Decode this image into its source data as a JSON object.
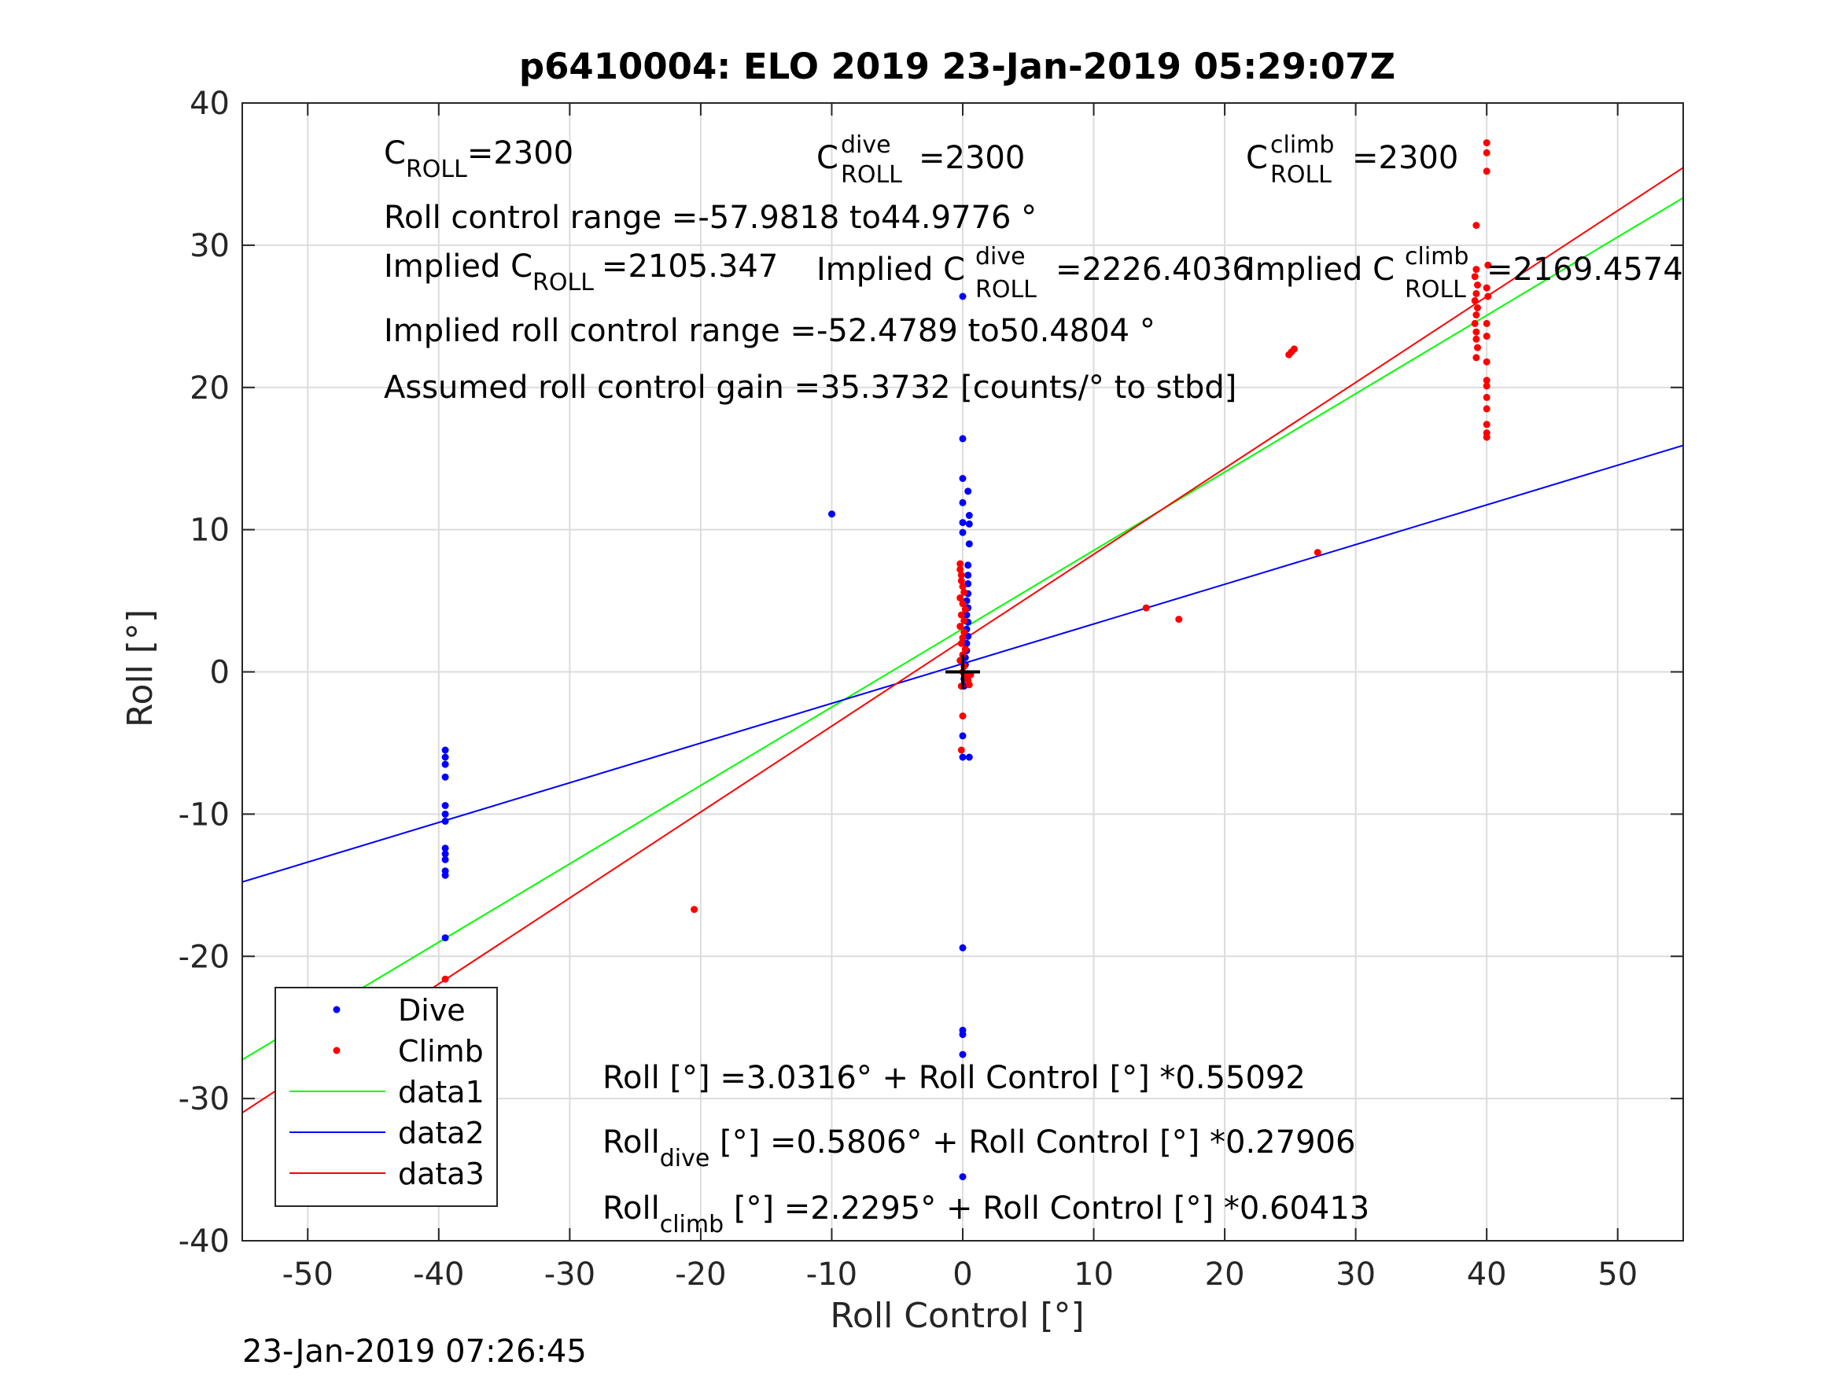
{
  "chart_data": {
    "type": "scatter",
    "title": "p6410004: ELO 2019 23-Jan-2019 05:29:07Z",
    "xlabel": "Roll Control [°]",
    "ylabel": "Roll [°]",
    "xlim": [
      -55,
      55
    ],
    "ylim": [
      -40,
      40
    ],
    "xticks": [
      "-50",
      "-40",
      "-30",
      "-20",
      "-10",
      "0",
      "10",
      "20",
      "30",
      "40",
      "50"
    ],
    "yticks": [
      "-40",
      "-30",
      "-20",
      "-10",
      "0",
      "10",
      "20",
      "30",
      "40"
    ],
    "grid": true,
    "legend_position": "bottom-left",
    "series": [
      {
        "name": "Dive",
        "style": "points",
        "color": "#0000ff",
        "points": [
          [
            -39.5,
            -5.5
          ],
          [
            -39.5,
            -6.0
          ],
          [
            -39.5,
            -6.5
          ],
          [
            -39.5,
            -7.4
          ],
          [
            -39.5,
            -9.4
          ],
          [
            -39.5,
            -10.0
          ],
          [
            -39.5,
            -10.5
          ],
          [
            -39.5,
            -12.4
          ],
          [
            -39.5,
            -12.8
          ],
          [
            -39.5,
            -13.2
          ],
          [
            -39.5,
            -14.0
          ],
          [
            -39.5,
            -14.3
          ],
          [
            -39.5,
            -18.7
          ],
          [
            -10.0,
            11.1
          ],
          [
            0.0,
            26.4
          ],
          [
            0.0,
            16.4
          ],
          [
            0.0,
            13.6
          ],
          [
            0.4,
            12.7
          ],
          [
            0.0,
            11.9
          ],
          [
            0.5,
            11.0
          ],
          [
            0.0,
            10.5
          ],
          [
            0.5,
            10.4
          ],
          [
            0.0,
            9.8
          ],
          [
            0.5,
            9.0
          ],
          [
            0.4,
            7.5
          ],
          [
            0.4,
            6.8
          ],
          [
            0.4,
            6.2
          ],
          [
            0.4,
            5.5
          ],
          [
            0.3,
            5.0
          ],
          [
            0.4,
            4.5
          ],
          [
            0.3,
            4.0
          ],
          [
            0.4,
            3.5
          ],
          [
            0.3,
            3.0
          ],
          [
            0.4,
            2.5
          ],
          [
            0.3,
            2.0
          ],
          [
            0.3,
            1.5
          ],
          [
            0.2,
            1.0
          ],
          [
            0.2,
            0.5
          ],
          [
            0.1,
            -0.5
          ],
          [
            0.1,
            -1.0
          ],
          [
            0.0,
            -4.5
          ],
          [
            0.0,
            -6.0
          ],
          [
            0.5,
            -6.0
          ],
          [
            0.0,
            -19.4
          ],
          [
            0.0,
            -25.2
          ],
          [
            0.0,
            -25.5
          ],
          [
            0.0,
            -26.9
          ],
          [
            0.0,
            -35.5
          ]
        ]
      },
      {
        "name": "Climb",
        "style": "points",
        "color": "#ff0000",
        "points": [
          [
            -39.5,
            -21.6
          ],
          [
            -39.5,
            -25.0
          ],
          [
            -20.5,
            -16.7
          ],
          [
            -0.2,
            7.6
          ],
          [
            -0.2,
            7.2
          ],
          [
            -0.1,
            6.8
          ],
          [
            -0.1,
            6.4
          ],
          [
            0.0,
            6.0
          ],
          [
            0.1,
            5.6
          ],
          [
            -0.2,
            5.2
          ],
          [
            0.0,
            4.8
          ],
          [
            0.2,
            4.4
          ],
          [
            -0.1,
            4.0
          ],
          [
            0.1,
            3.6
          ],
          [
            -0.2,
            3.2
          ],
          [
            0.1,
            2.8
          ],
          [
            0.0,
            2.4
          ],
          [
            -0.1,
            2.0
          ],
          [
            0.2,
            1.6
          ],
          [
            0.0,
            1.2
          ],
          [
            -0.2,
            0.8
          ],
          [
            0.1,
            0.4
          ],
          [
            0.0,
            0.0
          ],
          [
            0.2,
            -0.3
          ],
          [
            0.4,
            -0.6
          ],
          [
            0.5,
            -0.9
          ],
          [
            0.6,
            -0.2
          ],
          [
            -0.1,
            -1.0
          ],
          [
            0.0,
            -3.1
          ],
          [
            -0.1,
            -5.5
          ],
          [
            14.0,
            4.5
          ],
          [
            16.5,
            3.7
          ],
          [
            24.9,
            22.3
          ],
          [
            25.1,
            22.5
          ],
          [
            25.3,
            22.7
          ],
          [
            27.1,
            8.4
          ],
          [
            39.2,
            31.4
          ],
          [
            39.2,
            28.3
          ],
          [
            39.1,
            27.8
          ],
          [
            39.3,
            27.2
          ],
          [
            39.2,
            26.6
          ],
          [
            39.1,
            26.1
          ],
          [
            39.3,
            25.6
          ],
          [
            39.2,
            25.1
          ],
          [
            39.1,
            24.5
          ],
          [
            39.2,
            23.9
          ],
          [
            39.2,
            23.4
          ],
          [
            39.3,
            22.8
          ],
          [
            39.2,
            22.1
          ],
          [
            40.0,
            37.2
          ],
          [
            40.0,
            36.5
          ],
          [
            40.0,
            35.2
          ],
          [
            40.1,
            28.6
          ],
          [
            40.0,
            27.0
          ],
          [
            40.1,
            26.4
          ],
          [
            40.0,
            24.5
          ],
          [
            40.0,
            23.6
          ],
          [
            40.0,
            21.8
          ],
          [
            40.0,
            20.5
          ],
          [
            40.0,
            20.1
          ],
          [
            40.0,
            19.3
          ],
          [
            40.0,
            18.5
          ],
          [
            40.0,
            17.4
          ],
          [
            40.0,
            16.8
          ],
          [
            40.0,
            16.5
          ]
        ]
      },
      {
        "name": "data1",
        "style": "line",
        "color": "#00ff00",
        "x": [
          -55,
          55
        ],
        "y": [
          -27.27,
          33.33
        ]
      },
      {
        "name": "data2",
        "style": "line",
        "color": "#0000ff",
        "x": [
          -55,
          55
        ],
        "y": [
          -14.77,
          15.93
        ]
      },
      {
        "name": "data3",
        "style": "line",
        "color": "#ff0000",
        "x": [
          -55,
          55
        ],
        "y": [
          -30.998,
          35.457
        ]
      }
    ],
    "marker": {
      "x": 0,
      "y": 0,
      "symbol": "+",
      "color": "#000000"
    },
    "annotations": {
      "c_roll": {
        "base": "C",
        "sub": "ROLL",
        "value": "=2300"
      },
      "c_roll_dive": {
        "base": "C",
        "sup": "dive",
        "sub": "ROLL",
        "value": "=2300"
      },
      "c_roll_climb": {
        "base": "C",
        "sup": "climb",
        "sub": "ROLL",
        "value": "=2300"
      },
      "roll_control_range": "Roll control range =-57.9818 to44.9776 °",
      "implied_c_roll": {
        "base": "Implied C",
        "sub": "ROLL",
        "value": "=2105.347"
      },
      "implied_c_roll_dive": {
        "base": "Implied C",
        "sup": "dive",
        "sub": "ROLL",
        "value": "=2226.4036"
      },
      "implied_c_roll_climb": {
        "base": "Implied C",
        "sup": "climb",
        "sub": "ROLL",
        "value": "=2169.4574"
      },
      "implied_roll_control_range": "Implied roll control range =-52.4789 to50.4804 °",
      "assumed_gain": "Assumed roll control gain =35.3732 [counts/° to stbd]",
      "fit_all": {
        "base": "Roll [°] =3.0316° + Roll Control [°] *0.55092"
      },
      "fit_dive": {
        "base": "Roll",
        "sub": "dive",
        "rest": " [°] =0.5806° + Roll Control [°] *0.27906"
      },
      "fit_climb": {
        "base": "Roll",
        "sub": "climb",
        "rest": " [°] =2.2295° + Roll Control [°] *0.60413"
      }
    }
  },
  "footer": {
    "timestamp": "23-Jan-2019 07:26:45"
  }
}
